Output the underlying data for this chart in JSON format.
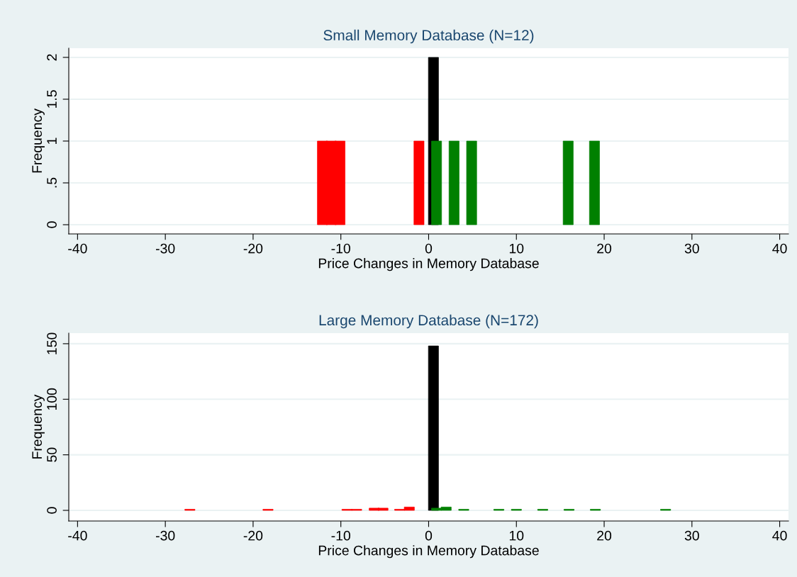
{
  "chart_data": [
    {
      "type": "bar",
      "title": "Small Memory Database (N=12)",
      "xlabel": "Price Changes in Memory Database",
      "ylabel": "Frequency",
      "xlim": [
        -41,
        41
      ],
      "xticks": [
        -40,
        -30,
        -20,
        -10,
        0,
        10,
        20,
        30,
        40
      ],
      "ylim": [
        -0.11,
        2.11
      ],
      "yticks": [
        0,
        {
          "value": 0.5,
          "label": ".5"
        },
        1,
        1.5,
        2
      ],
      "grid": "y",
      "series": [
        {
          "color": "#ff0000",
          "x": [
            -12.1,
            -11.1,
            -10.1,
            -1.1
          ],
          "values": [
            1,
            1,
            1,
            1
          ]
        },
        {
          "color": "#000000",
          "x": [
            0.55
          ],
          "values": [
            2
          ]
        },
        {
          "color": "#008000",
          "x": [
            0.9,
            2.9,
            4.9,
            15.9,
            18.9
          ],
          "values": [
            1,
            1,
            1,
            1,
            1
          ]
        }
      ]
    },
    {
      "type": "bar",
      "title": "Large Memory Database (N=172)",
      "xlabel": "Price Changes in Memory Database",
      "ylabel": "Frequency",
      "xlim": [
        -41,
        41
      ],
      "xticks": [
        -40,
        -30,
        -20,
        -10,
        0,
        10,
        20,
        30,
        40
      ],
      "ylim": [
        -9.6,
        159.5
      ],
      "yticks": [
        0,
        50,
        100,
        150
      ],
      "grid": "y",
      "series": [
        {
          "color": "#ff0000",
          "x": [
            -27.2,
            -18.3,
            -9.3,
            -8.2,
            -6.2,
            -5.2,
            -3.3,
            -2.2
          ],
          "values": [
            1,
            1,
            1,
            1,
            2,
            2,
            1,
            3
          ]
        },
        {
          "color": "#000000",
          "x": [
            0.55
          ],
          "values": [
            148
          ]
        },
        {
          "color": "#008000",
          "x": [
            0.9,
            2.0,
            4.0,
            8.0,
            10.0,
            13.0,
            16.0,
            19.0,
            27.0
          ],
          "values": [
            2,
            3,
            1,
            1,
            1,
            1,
            1,
            1,
            1
          ]
        }
      ]
    }
  ]
}
